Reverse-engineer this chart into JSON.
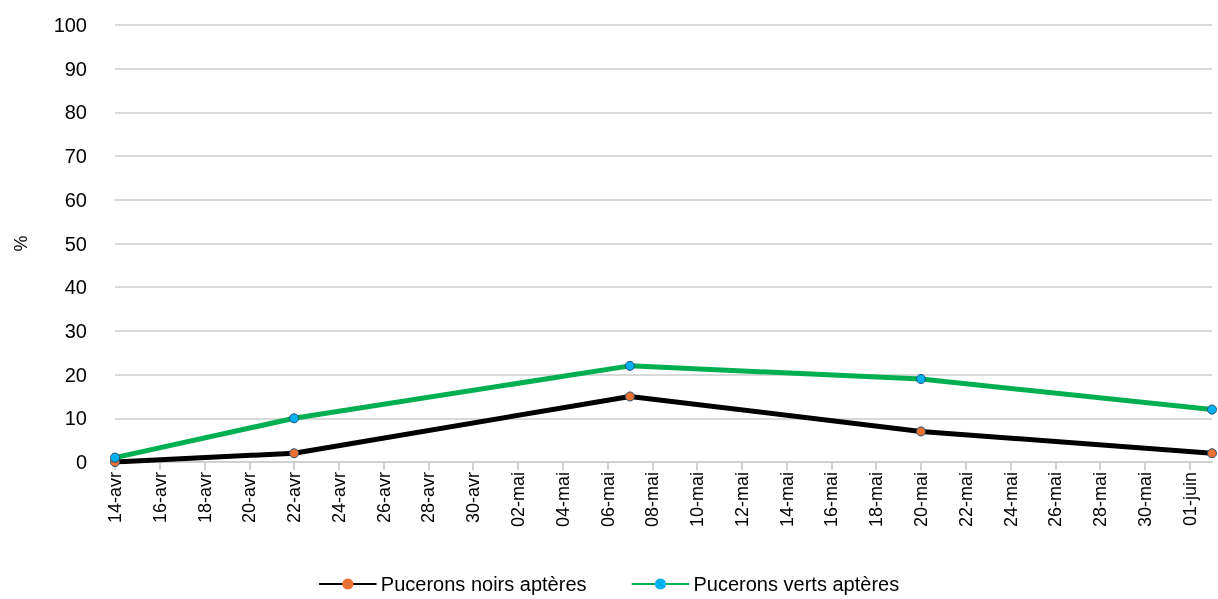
{
  "chart_data": {
    "type": "line",
    "ylabel": "%",
    "x": [
      "--04-14",
      "--04-22",
      "--05-07",
      "--05-20",
      "--06-02"
    ],
    "series": [
      {
        "name": "Pucerons noirs aptères",
        "color": "#000000",
        "colors": [
          "#e97132",
          "#e97132",
          "#e97132",
          "#e97132",
          "#e97132"
        ],
        "values": [
          0,
          2,
          15,
          7,
          2
        ]
      },
      {
        "name": "Pucerons verts aptères",
        "color": "#00b050",
        "colors": [
          "#00b0f0",
          "#00b0f0",
          "#00b0f0",
          "#00b0f0",
          "#00b0f0"
        ],
        "values": [
          1,
          10,
          22,
          19,
          12
        ]
      }
    ],
    "xlim": [
      "--04-14",
      "--06-02"
    ],
    "xticks": [
      {
        "value": "--04-14",
        "label": "14-avr"
      },
      {
        "value": "--04-16",
        "label": "16-avr"
      },
      {
        "value": "--04-18",
        "label": "18-avr"
      },
      {
        "value": "--04-20",
        "label": "20-avr"
      },
      {
        "value": "--04-22",
        "label": "22-avr"
      },
      {
        "value": "--04-24",
        "label": "24-avr"
      },
      {
        "value": "--04-26",
        "label": "26-avr"
      },
      {
        "value": "--04-28",
        "label": "28-avr"
      },
      {
        "value": "--04-30",
        "label": "30-avr"
      },
      {
        "value": "--05-02",
        "label": "02-mai"
      },
      {
        "value": "--05-04",
        "label": "04-mai"
      },
      {
        "value": "--05-06",
        "label": "06-mai"
      },
      {
        "value": "--05-08",
        "label": "08-mai"
      },
      {
        "value": "--05-10",
        "label": "10-mai"
      },
      {
        "value": "--05-12",
        "label": "12-mai"
      },
      {
        "value": "--05-14",
        "label": "14-mai"
      },
      {
        "value": "--05-16",
        "label": "16-mai"
      },
      {
        "value": "--05-18",
        "label": "18-mai"
      },
      {
        "value": "--05-20",
        "label": "20-mai"
      },
      {
        "value": "--05-22",
        "label": "22-mai"
      },
      {
        "value": "--05-24",
        "label": "24-mai"
      },
      {
        "value": "--05-26",
        "label": "26-mai"
      },
      {
        "value": "--05-28",
        "label": "28-mai"
      },
      {
        "value": "--05-30",
        "label": "30-mai"
      },
      {
        "value": "--06-01",
        "label": "01-juin"
      }
    ],
    "ylim": [
      0,
      100
    ],
    "yticks": [
      0,
      10,
      20,
      30,
      40,
      50,
      60,
      70,
      80,
      90,
      100
    ],
    "grid": "y",
    "legend": "bottom",
    "marker": "circle",
    "line_style": "solid"
  }
}
